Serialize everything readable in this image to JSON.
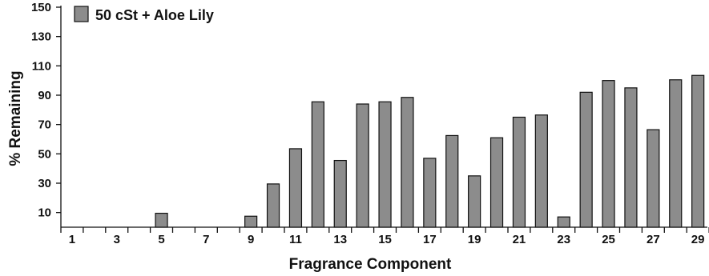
{
  "chart_data": {
    "type": "bar",
    "xlabel": "Fragrance Component",
    "ylabel": "% Remaining",
    "ylim": [
      0,
      150
    ],
    "yticks": [
      10,
      30,
      50,
      70,
      90,
      110,
      130,
      150
    ],
    "categories": [
      "1",
      "2",
      "3",
      "4",
      "5",
      "6",
      "7",
      "8",
      "9",
      "10",
      "11",
      "12",
      "13",
      "14",
      "15",
      "16",
      "17",
      "18",
      "19",
      "20",
      "21",
      "22",
      "23",
      "24",
      "25",
      "26",
      "27",
      "28",
      "29"
    ],
    "xtick_labels": [
      "1",
      "3",
      "5",
      "7",
      "9",
      "11",
      "13",
      "15",
      "17",
      "19",
      "21",
      "23",
      "25",
      "27",
      "29"
    ],
    "series": [
      {
        "name": "50 cSt + Aloe Lily",
        "color": "#8c8c8c",
        "values": [
          0,
          0,
          0,
          0,
          9.5,
          0,
          0,
          0,
          7.5,
          29.5,
          53.5,
          85.5,
          45.5,
          84,
          85.5,
          88.5,
          47,
          62.5,
          35,
          61,
          75,
          76.5,
          7,
          92,
          100,
          95,
          66.5,
          100.5,
          103.5
        ]
      }
    ],
    "legend_position": "top-left",
    "grid": false
  }
}
